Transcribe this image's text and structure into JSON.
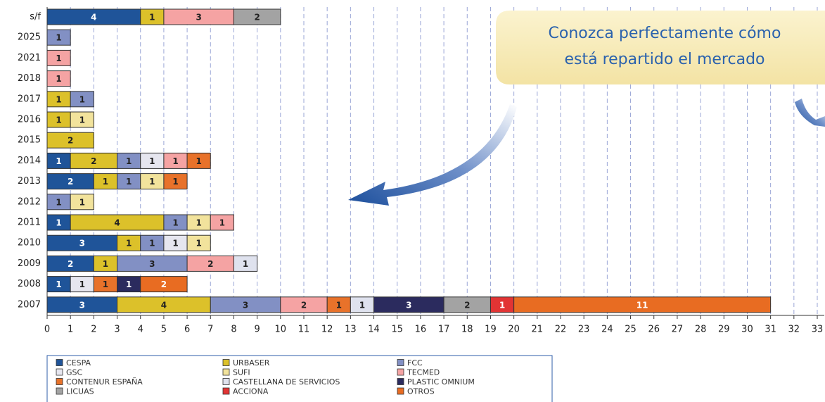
{
  "chart_data": {
    "type": "stacked-barh",
    "categories": [
      "s/f",
      "2025",
      "2021",
      "2018",
      "2017",
      "2016",
      "2015",
      "2014",
      "2013",
      "2012",
      "2011",
      "2010",
      "2009",
      "2008",
      "2007"
    ],
    "series": [
      {
        "name": "CESPA",
        "color": "#1f5499",
        "values": [
          4,
          null,
          null,
          null,
          null,
          null,
          null,
          1,
          2,
          null,
          1,
          3,
          2,
          1,
          3
        ]
      },
      {
        "name": "URBASER",
        "color": "#dcc12a",
        "values": [
          1,
          null,
          null,
          null,
          1,
          1,
          2,
          2,
          1,
          null,
          4,
          1,
          1,
          null,
          4
        ]
      },
      {
        "name": "FCC",
        "color": "#8290c4",
        "values": [
          null,
          1,
          null,
          null,
          1,
          null,
          null,
          1,
          1,
          1,
          1,
          1,
          3,
          null,
          3
        ]
      },
      {
        "name": "GSC",
        "color": "#e6e6ef",
        "values": [
          null,
          null,
          null,
          null,
          null,
          null,
          null,
          1,
          null,
          null,
          null,
          1,
          null,
          1,
          null
        ]
      },
      {
        "name": "SUFI",
        "color": "#f2e39c",
        "values": [
          null,
          null,
          null,
          null,
          null,
          1,
          null,
          null,
          1,
          1,
          1,
          1,
          null,
          null,
          null
        ]
      },
      {
        "name": "TECMED",
        "color": "#f5a3a3",
        "values": [
          3,
          null,
          1,
          1,
          null,
          null,
          null,
          1,
          null,
          null,
          1,
          null,
          2,
          null,
          2
        ]
      },
      {
        "name": "CONTENUR ESPAÑA",
        "color": "#e8722a",
        "values": [
          null,
          null,
          null,
          null,
          null,
          null,
          null,
          1,
          1,
          null,
          null,
          null,
          null,
          1,
          1
        ]
      },
      {
        "name": "CASTELLANA DE SERVICIOS",
        "color": "#dfe2ee",
        "values": [
          null,
          null,
          null,
          null,
          null,
          null,
          null,
          null,
          null,
          null,
          null,
          null,
          1,
          null,
          1
        ]
      },
      {
        "name": "PLASTIC OMNIUM",
        "color": "#2b2b5e",
        "values": [
          null,
          null,
          null,
          null,
          null,
          null,
          null,
          null,
          null,
          null,
          null,
          null,
          null,
          1,
          3
        ]
      },
      {
        "name": "LICUAS",
        "color": "#a3a3a3",
        "values": [
          2,
          null,
          null,
          null,
          null,
          null,
          null,
          null,
          null,
          null,
          null,
          null,
          null,
          null,
          2
        ]
      },
      {
        "name": "ACCIONA",
        "color": "#e23434",
        "values": [
          null,
          null,
          null,
          null,
          null,
          null,
          null,
          null,
          null,
          null,
          null,
          null,
          null,
          null,
          1
        ]
      },
      {
        "name": "OTROS",
        "color": "#e86c22",
        "values": [
          null,
          null,
          null,
          null,
          null,
          null,
          null,
          null,
          null,
          null,
          null,
          null,
          null,
          2,
          11
        ]
      }
    ],
    "xlim": [
      0,
      33
    ],
    "xticks": [
      0,
      1,
      2,
      3,
      4,
      5,
      6,
      7,
      8,
      9,
      10,
      11,
      12,
      13,
      14,
      15,
      16,
      17,
      18,
      19,
      20,
      21,
      22,
      23,
      24,
      25,
      26,
      27,
      28,
      29,
      30,
      31,
      32,
      33
    ],
    "grid": true,
    "annotation": [
      "Conozca perfectamente cómo",
      "está repartido el mercado"
    ]
  }
}
